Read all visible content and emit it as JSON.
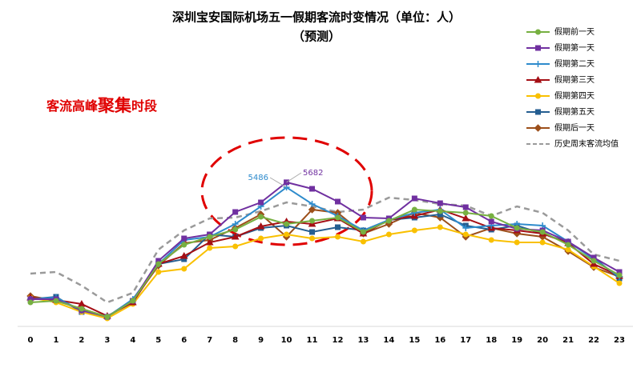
{
  "chart_data": {
    "type": "line",
    "title": "深圳宝安国际机场五一假期客流时变情况（单位：人）",
    "subtitle": "（预测）",
    "annotation": "客流高峰聚集时段",
    "categories": [
      "0",
      "1",
      "2",
      "3",
      "4",
      "5",
      "6",
      "7",
      "8",
      "9",
      "10",
      "11",
      "12",
      "13",
      "14",
      "15",
      "16",
      "17",
      "18",
      "19",
      "20",
      "21",
      "22",
      "23"
    ],
    "series": [
      {
        "name": "假期前一天",
        "color": "#77b041",
        "marker": "circle",
        "values": [
          998,
          1061,
          749,
          437,
          1061,
          2496,
          3245,
          3557,
          3838,
          4337,
          4056,
          4181,
          4306,
          3744,
          4181,
          4618,
          4555,
          4493,
          4368,
          3900,
          3744,
          3245,
          2621,
          2059
        ]
      },
      {
        "name": "假期第一天",
        "color": "#7030a0",
        "marker": "square",
        "values": [
          1123,
          1123,
          686,
          437,
          1061,
          2621,
          3494,
          3650,
          4524,
          4898,
          5682,
          5429,
          4930,
          4306,
          4274,
          5054,
          4867,
          4711,
          4150,
          3869,
          3806,
          3370,
          2746,
          2184
        ]
      },
      {
        "name": "假期第二天",
        "color": "#2e8bcc",
        "marker": "plus",
        "values": [
          1123,
          1186,
          686,
          437,
          1123,
          2496,
          3432,
          3557,
          4056,
          4742,
          5486,
          4836,
          4368,
          3806,
          4212,
          4493,
          4618,
          3900,
          3994,
          4056,
          3994,
          3370,
          2683,
          1997
        ]
      },
      {
        "name": "假期第三天",
        "color": "#a50f15",
        "marker": "triangle",
        "values": [
          1186,
          1092,
          936,
          468,
          998,
          2496,
          2808,
          3338,
          3557,
          3962,
          4150,
          4056,
          4274,
          3682,
          4212,
          4368,
          4618,
          4274,
          3900,
          3806,
          3682,
          3307,
          2496,
          2028
        ]
      },
      {
        "name": "假期第四天",
        "color": "#f9c000",
        "marker": "circle",
        "values": [
          1186,
          998,
          624,
          374,
          936,
          2184,
          2309,
          3120,
          3182,
          3494,
          3650,
          3494,
          3557,
          3370,
          3650,
          3806,
          3931,
          3650,
          3432,
          3338,
          3338,
          3058,
          2402,
          1747
        ]
      },
      {
        "name": "假期第五天",
        "color": "#255e91",
        "marker": "square",
        "values": [
          1123,
          1217,
          624,
          437,
          1061,
          2496,
          2683,
          3650,
          3557,
          3900,
          3994,
          3744,
          3931,
          3806,
          4212,
          4306,
          4430,
          3994,
          3838,
          3994,
          3682,
          3338,
          2746,
          1934
        ]
      },
      {
        "name": "假期后一天",
        "color": "#9c4f1a",
        "marker": "diamond",
        "values": [
          1248,
          1061,
          749,
          437,
          1061,
          2434,
          3307,
          3432,
          3900,
          4430,
          3557,
          4618,
          4493,
          3682,
          4056,
          4493,
          4306,
          3557,
          3900,
          3682,
          3557,
          2995,
          2371,
          1997
        ]
      },
      {
        "name": "历史周末客流均值",
        "color": "#9a9a9a",
        "marker": "none",
        "dashed": true,
        "values": [
          2122,
          2184,
          1654,
          998,
          1373,
          3058,
          3806,
          4274,
          4306,
          4555,
          4898,
          4742,
          4524,
          4618,
          5086,
          4992,
          4836,
          4774,
          4368,
          4742,
          4493,
          3806,
          2870,
          2621
        ]
      }
    ]
  }
}
